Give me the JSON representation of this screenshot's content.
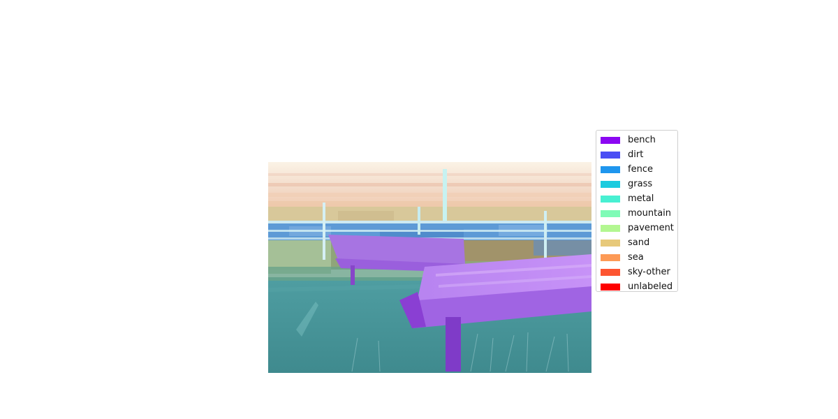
{
  "legend": {
    "items": [
      {
        "label": "bench",
        "color": "#8b07f2"
      },
      {
        "label": "dirt",
        "color": "#4a4ef4"
      },
      {
        "label": "fence",
        "color": "#1f96ee"
      },
      {
        "label": "grass",
        "color": "#1ccbdf"
      },
      {
        "label": "metal",
        "color": "#48f0d2"
      },
      {
        "label": "mountain",
        "color": "#7ffbb6"
      },
      {
        "label": "pavement",
        "color": "#b3f791"
      },
      {
        "label": "sand",
        "color": "#e7c97a"
      },
      {
        "label": "sea",
        "color": "#fd9a56"
      },
      {
        "label": "sky-other",
        "color": "#fd5531"
      },
      {
        "label": "unlabeled",
        "color": "#fe0000"
      }
    ]
  }
}
